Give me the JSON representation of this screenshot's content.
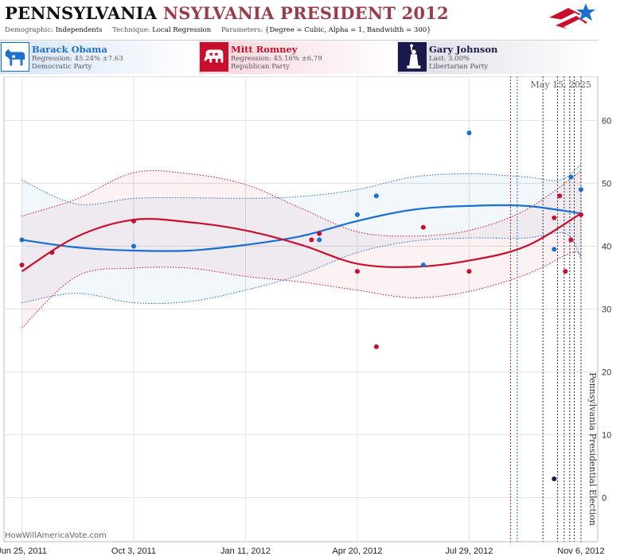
{
  "header": {
    "title_main": "PENNSYLVANIA",
    "title_rest": "NSYLVANIA PRESIDENT 2012",
    "demographic_label": "Demographic:",
    "demographic": "Independents",
    "technique_label": "Technique:",
    "technique": "Local Regression",
    "parameters_label": "Parameters:",
    "parameters": "{Degree = Cubic, Alpha = 1, Bandwidth = 300}"
  },
  "candidates": [
    {
      "name": "Barack Obama",
      "line1": "Regression: 45.24% ±7.63",
      "line2": "Democratic Party",
      "icon": "donkey-icon",
      "color": "#1a6fcf"
    },
    {
      "name": "Mitt Romney",
      "line1": "Regression: 45.16% ±6.79",
      "line2": "Republican Party",
      "icon": "elephant-icon",
      "color": "#c8102e"
    },
    {
      "name": "Gary Johnson",
      "line1": "Last: 3.00%",
      "line2": "Libertarian Party",
      "icon": "liberty-statue-icon",
      "color": "#1a1a4a"
    }
  ],
  "watermark": "HowWillAmericaVote.com",
  "colors": {
    "dem": "#1a6fcf",
    "rep": "#c8102e",
    "lib": "#1a1a4a",
    "grid": "#e2e2e2"
  },
  "chart_data": {
    "type": "scatter",
    "title": "PENNSYLVANIA NSYLVANIA PRESIDENT 2012",
    "date_label": "May 15, 2025",
    "election_label": "Pennsylvania Presidential Election",
    "x_ticks": [
      "Jun 25, 2011",
      "Oct 3, 2011",
      "Jan 11, 2012",
      "Apr 20, 2012",
      "Jul 29, 2012",
      "Nov 6, 2012"
    ],
    "x_range": [
      "2011-06-09",
      "2012-11-21"
    ],
    "y_range": [
      -7,
      67
    ],
    "y_ticks": [
      0,
      10,
      20,
      30,
      40,
      50,
      60
    ],
    "grid": true,
    "series": [
      {
        "name": "Barack Obama",
        "color": "#1a6fcf",
        "points": [
          [
            "2011-06-25",
            41
          ],
          [
            "2011-10-03",
            40
          ],
          [
            "2012-03-17",
            41
          ],
          [
            "2012-04-20",
            45
          ],
          [
            "2012-05-07",
            48
          ],
          [
            "2012-06-18",
            37
          ],
          [
            "2012-07-29",
            58
          ],
          [
            "2012-10-13",
            39.5
          ],
          [
            "2012-10-28",
            51
          ],
          [
            "2012-11-06",
            49
          ]
        ],
        "trend": [
          [
            "2011-06-25",
            41
          ],
          [
            "2011-08-13",
            39.8
          ],
          [
            "2011-10-03",
            39.3
          ],
          [
            "2011-11-22",
            39.3
          ],
          [
            "2012-01-11",
            40.2
          ],
          [
            "2012-03-01",
            41.6
          ],
          [
            "2012-04-20",
            44
          ],
          [
            "2012-06-09",
            45.8
          ],
          [
            "2012-07-29",
            46.4
          ],
          [
            "2012-09-18",
            46.4
          ],
          [
            "2012-11-06",
            45.2
          ]
        ],
        "band_upper": [
          [
            "2011-06-25",
            50.5
          ],
          [
            "2011-08-13",
            46.7
          ],
          [
            "2011-10-03",
            47.6
          ],
          [
            "2011-11-22",
            47.7
          ],
          [
            "2012-01-11",
            47.6
          ],
          [
            "2012-03-01",
            47.9
          ],
          [
            "2012-04-20",
            49
          ],
          [
            "2012-06-09",
            51
          ],
          [
            "2012-07-29",
            51.5
          ],
          [
            "2012-09-18",
            51
          ],
          [
            "2012-10-18",
            50.5
          ],
          [
            "2012-11-06",
            53
          ]
        ],
        "band_lower": [
          [
            "2011-06-25",
            31
          ],
          [
            "2011-08-13",
            32.5
          ],
          [
            "2011-10-03",
            31
          ],
          [
            "2011-11-22",
            31.2
          ],
          [
            "2012-01-11",
            33
          ],
          [
            "2012-03-01",
            35.5
          ],
          [
            "2012-04-20",
            39
          ],
          [
            "2012-06-09",
            40.8
          ],
          [
            "2012-07-29",
            41.3
          ],
          [
            "2012-09-18",
            41.3
          ],
          [
            "2012-10-23",
            42
          ],
          [
            "2012-11-06",
            38
          ]
        ]
      },
      {
        "name": "Mitt Romney",
        "color": "#c8102e",
        "points": [
          [
            "2011-06-25",
            37
          ],
          [
            "2011-07-22",
            39
          ],
          [
            "2011-10-03",
            44
          ],
          [
            "2012-03-10",
            41
          ],
          [
            "2012-03-17",
            42
          ],
          [
            "2012-04-20",
            36
          ],
          [
            "2012-05-07",
            24
          ],
          [
            "2012-06-18",
            43
          ],
          [
            "2012-07-29",
            36
          ],
          [
            "2012-10-13",
            44.5
          ],
          [
            "2012-10-18",
            48
          ],
          [
            "2012-10-23",
            36
          ],
          [
            "2012-10-28",
            41
          ],
          [
            "2012-11-06",
            45
          ]
        ],
        "trend": [
          [
            "2011-06-25",
            36
          ],
          [
            "2011-08-13",
            41.5
          ],
          [
            "2011-10-03",
            44.2
          ],
          [
            "2011-11-22",
            43.8
          ],
          [
            "2012-01-11",
            42.5
          ],
          [
            "2012-03-01",
            40.2
          ],
          [
            "2012-04-20",
            37.2
          ],
          [
            "2012-06-09",
            36.7
          ],
          [
            "2012-07-29",
            37.7
          ],
          [
            "2012-09-18",
            40
          ],
          [
            "2012-11-06",
            45.2
          ]
        ],
        "band_upper": [
          [
            "2011-06-25",
            44.8
          ],
          [
            "2011-08-13",
            47.5
          ],
          [
            "2011-10-03",
            51.7
          ],
          [
            "2011-11-22",
            51.5
          ],
          [
            "2012-01-11",
            49.8
          ],
          [
            "2012-03-01",
            46
          ],
          [
            "2012-04-20",
            42.3
          ],
          [
            "2012-06-09",
            41.6
          ],
          [
            "2012-07-29",
            42.5
          ],
          [
            "2012-09-18",
            45.8
          ],
          [
            "2012-11-06",
            52
          ]
        ],
        "band_lower": [
          [
            "2011-06-25",
            27
          ],
          [
            "2011-08-13",
            35.2
          ],
          [
            "2011-10-03",
            36.5
          ],
          [
            "2011-11-22",
            36.5
          ],
          [
            "2012-01-11",
            35.2
          ],
          [
            "2012-03-01",
            34.3
          ],
          [
            "2012-04-20",
            33
          ],
          [
            "2012-06-09",
            31.8
          ],
          [
            "2012-07-29",
            32.8
          ],
          [
            "2012-09-18",
            35.5
          ],
          [
            "2012-10-28",
            38.9
          ],
          [
            "2012-11-06",
            38.6
          ]
        ]
      },
      {
        "name": "Gary Johnson",
        "color": "#1a1a4a",
        "points": [
          [
            "2012-10-13",
            3
          ]
        ]
      }
    ],
    "event_lines": [
      {
        "date": "2012-09-04",
        "color": "#c8102e"
      },
      {
        "date": "2012-09-10",
        "color": "#1a6fcf"
      },
      {
        "date": "2012-10-03",
        "color": "#333333"
      },
      {
        "date": "2012-10-16",
        "color": "#333333"
      },
      {
        "date": "2012-10-22",
        "color": "#333333"
      },
      {
        "date": "2012-10-27",
        "color": "#333333"
      },
      {
        "date": "2012-10-31",
        "color": "#333333"
      },
      {
        "date": "2012-11-06",
        "color": "#333333"
      }
    ]
  }
}
